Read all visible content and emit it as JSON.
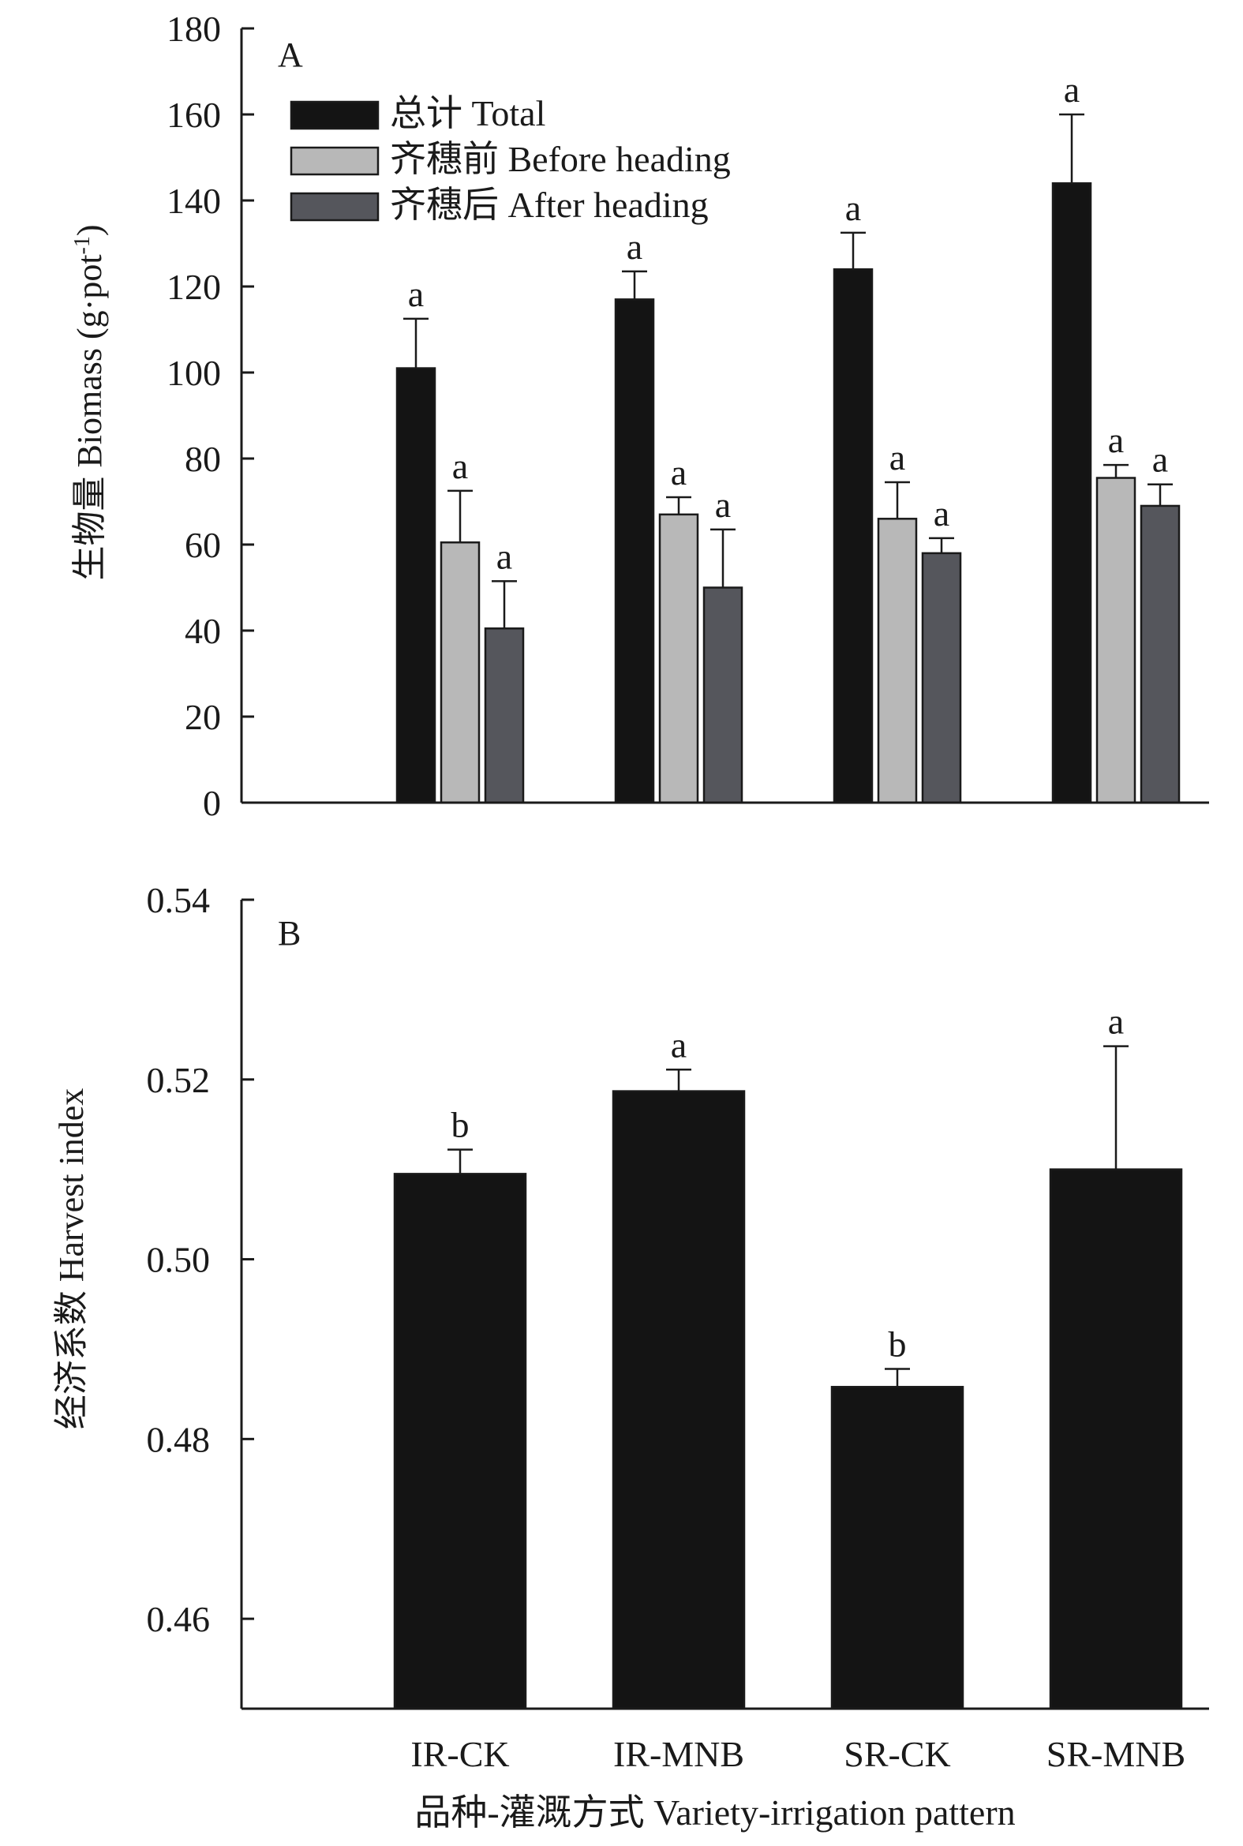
{
  "colors": {
    "total": "#141414",
    "before_heading": "#b8b8b8",
    "after_heading": "#55565c",
    "axis": "#1a1a1a"
  },
  "chart_data": [
    {
      "type": "bar",
      "panel_label": "A",
      "ylabel": "生物量 Biomass (g·pot",
      "ylabel_sup": "-1",
      "ylabel_close": ")",
      "ylim": [
        0,
        180
      ],
      "yticks": [
        0,
        20,
        40,
        60,
        80,
        100,
        120,
        140,
        160,
        180
      ],
      "categories": [
        "IR-CK",
        "IR-MNB",
        "SR-CK",
        "SR-MNB"
      ],
      "legend_position": "top-left",
      "series": [
        {
          "name": "总计 Total",
          "color_key": "total",
          "values": [
            101,
            117,
            124,
            144
          ],
          "errors": [
            11.5,
            6.5,
            8.5,
            16
          ],
          "letters": [
            "a",
            "a",
            "a",
            "a"
          ]
        },
        {
          "name": "齐穗前 Before heading",
          "color_key": "before_heading",
          "values": [
            60.5,
            67,
            66,
            75.5
          ],
          "errors": [
            12,
            4,
            8.5,
            3
          ],
          "letters": [
            "a",
            "a",
            "a",
            "a"
          ]
        },
        {
          "name": "齐穗后 After heading",
          "color_key": "after_heading",
          "values": [
            40.5,
            50,
            58,
            69
          ],
          "errors": [
            11,
            13.5,
            3.5,
            5
          ],
          "letters": [
            "a",
            "a",
            "a",
            "a"
          ]
        }
      ]
    },
    {
      "type": "bar",
      "panel_label": "B",
      "ylabel": "经济系数 Harvest index",
      "ylim": [
        0.45,
        0.54
      ],
      "yticks": [
        0.46,
        0.48,
        0.5,
        0.52,
        0.54
      ],
      "yticks_text": [
        "0.46",
        "0.48",
        "0.50",
        "0.52",
        "0.54"
      ],
      "xlabel": "品种-灌溉方式 Variety-irrigation pattern",
      "categories": [
        "IR-CK",
        "IR-MNB",
        "SR-CK",
        "SR-MNB"
      ],
      "series": [
        {
          "color_key": "total",
          "values": [
            0.5095,
            0.5187,
            0.4858,
            0.51
          ],
          "errors": [
            0.0027,
            0.0024,
            0.002,
            0.0137
          ],
          "letters": [
            "b",
            "a",
            "b",
            "a"
          ]
        }
      ]
    }
  ]
}
